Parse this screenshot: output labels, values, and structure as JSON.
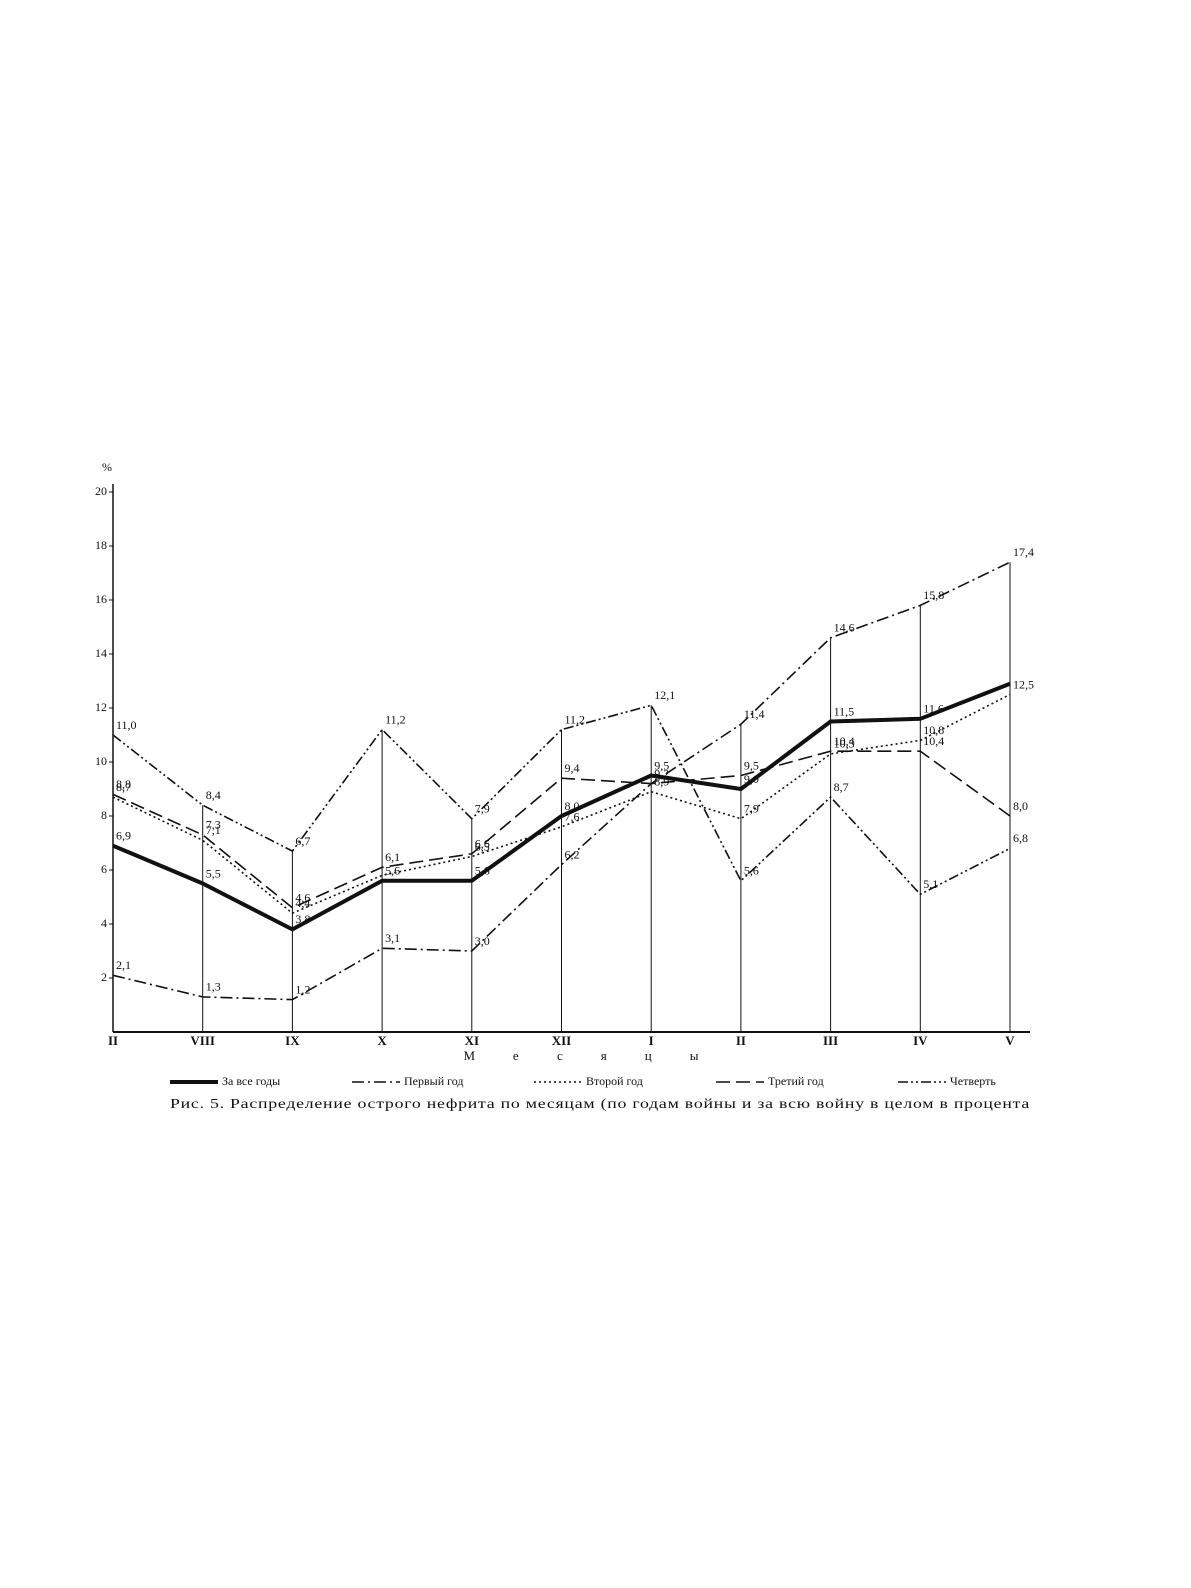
{
  "chart_data": {
    "type": "line",
    "y_unit": "%",
    "x_label": "Месяцы",
    "caption": "Рис. 5. Распределение острого нефрита по месяцам (по годам войны и за всю войну в целом в процента",
    "categories": [
      "II",
      "VIII",
      "IX",
      "X",
      "XI",
      "XII",
      "I",
      "II",
      "III",
      "IV",
      "V"
    ],
    "ylim": [
      0,
      20
    ],
    "yticks": [
      2,
      4,
      6,
      8,
      10,
      12,
      14,
      16,
      18,
      20
    ],
    "series": [
      {
        "name": "За все годы",
        "color": "#111111",
        "width": 4,
        "dash": "none",
        "values": [
          6.9,
          5.5,
          3.8,
          5.6,
          5.6,
          8.0,
          9.5,
          9.0,
          11.5,
          11.6,
          12.9
        ],
        "value_labels": [
          "6,9",
          "5,5",
          "3,8",
          "5,6",
          "5,6",
          "8,0",
          "9,5",
          "9,0",
          "11,5",
          "11,6",
          null
        ]
      },
      {
        "name": "Первый год",
        "color": "#111111",
        "width": 1.6,
        "dash": "12 4 2 4",
        "values": [
          2.1,
          1.3,
          1.2,
          3.1,
          3.0,
          6.2,
          9.2,
          11.4,
          14.6,
          15.8,
          17.4
        ],
        "value_labels": [
          "2,1",
          "1,3",
          "1,2",
          "3,1",
          "3,0",
          "6,2",
          "9,2",
          "11,4",
          "14,6",
          "15,8",
          "17,4"
        ]
      },
      {
        "name": "Второй год",
        "color": "#111111",
        "width": 1.6,
        "dash": "2 3",
        "values": [
          8.7,
          7.1,
          4.4,
          5.8,
          6.5,
          7.6,
          8.9,
          7.9,
          10.3,
          10.8,
          12.5
        ],
        "value_labels": [
          "8,7",
          "7,1",
          "4,4",
          null,
          "6,5",
          "7,6",
          "8,9",
          "7,9",
          "10,3",
          "10,8",
          "12,5"
        ]
      },
      {
        "name": "Третий год",
        "color": "#111111",
        "width": 1.6,
        "dash": "14 6",
        "values": [
          8.8,
          7.3,
          4.6,
          6.1,
          6.6,
          9.4,
          9.2,
          9.5,
          10.4,
          10.4,
          8.0
        ],
        "value_labels": [
          "8,8",
          "7,3",
          "4,6",
          "6,1",
          "6,6",
          "9,4",
          null,
          "9,5",
          "10,4",
          "10,4",
          "8,0"
        ]
      },
      {
        "name": "Четверть",
        "color": "#111111",
        "width": 1.6,
        "dash": "10 3 2 3 2 3",
        "values": [
          11.0,
          8.4,
          6.7,
          11.2,
          7.9,
          11.2,
          12.1,
          5.6,
          8.7,
          5.1,
          6.8
        ],
        "value_labels": [
          "11,0",
          "8,4",
          "6,7",
          "11,2",
          "7,9",
          "11,2",
          "12,1",
          "5,6",
          "8,7",
          "5,1",
          "6,8"
        ]
      }
    ]
  }
}
